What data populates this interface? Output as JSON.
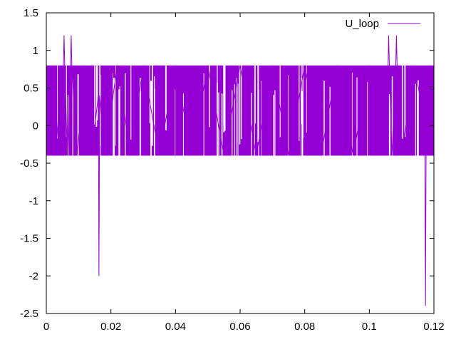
{
  "chart_data": {
    "type": "line",
    "title": "",
    "xlabel": "",
    "ylabel": "",
    "xlim": [
      0,
      0.12
    ],
    "ylim": [
      -2.5,
      1.5
    ],
    "x_ticks": [
      0,
      0.02,
      0.04,
      0.06,
      0.08,
      0.1,
      0.12
    ],
    "x_tick_labels": [
      "0",
      "0.02",
      "0.04",
      "0.06",
      "0.08",
      "0.1",
      "0.12"
    ],
    "y_ticks": [
      -2.5,
      -2,
      -1.5,
      -1,
      -0.5,
      0,
      0.5,
      1,
      1.5
    ],
    "y_tick_labels": [
      "-2.5",
      "-2",
      "-1.5",
      "-1",
      "-0.5",
      "0",
      "0.5",
      "1",
      "1.5"
    ],
    "grid": false,
    "legend_position": "top-right",
    "series": [
      {
        "name": "U_loop",
        "color": "#9400d3",
        "x": [
          0,
          0.002,
          0.004,
          0.0053,
          0.0055,
          0.0057,
          0.0065,
          0.0075,
          0.0077,
          0.0079,
          0.0095,
          0.012,
          0.014,
          0.0161,
          0.0163,
          0.0165,
          0.018,
          0.022,
          0.026,
          0.03,
          0.035,
          0.04,
          0.045,
          0.05,
          0.055,
          0.06,
          0.065,
          0.07,
          0.075,
          0.08,
          0.085,
          0.09,
          0.095,
          0.1,
          0.104,
          0.1058,
          0.106,
          0.1062,
          0.107,
          0.1082,
          0.1084,
          0.1086,
          0.11,
          0.114,
          0.1172,
          0.1174,
          0.1176,
          0.119,
          0.12
        ],
        "values": [
          0.4,
          0.8,
          -0.4,
          0.8,
          1.2,
          0.8,
          -0.4,
          0.8,
          1.2,
          0.8,
          -0.4,
          0.8,
          -0.4,
          0.4,
          -2.0,
          0.4,
          -0.4,
          0.8,
          -0.4,
          0.8,
          -0.4,
          0.8,
          -0.4,
          0.8,
          -0.4,
          0.8,
          -0.4,
          0.8,
          -0.4,
          0.8,
          -0.4,
          0.8,
          -0.4,
          0.8,
          -0.4,
          0.8,
          1.2,
          0.8,
          -0.4,
          0.8,
          1.2,
          0.8,
          -0.4,
          0.8,
          0.0,
          -2.4,
          0.0,
          0.8,
          -0.4
        ],
        "band": {
          "low": -0.4,
          "high": 0.8
        }
      }
    ]
  }
}
